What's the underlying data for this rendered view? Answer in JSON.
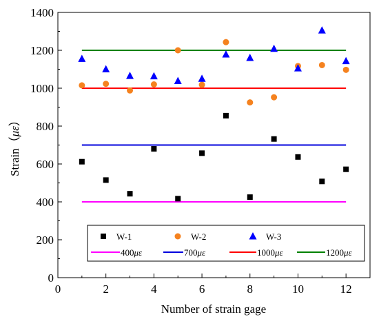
{
  "chart_data": {
    "type": "scatter",
    "xlabel": "Number of strain gage",
    "ylabel_prefix": "Strain（",
    "ylabel_unit": "με",
    "ylabel_suffix": "）",
    "xlim": [
      0,
      13
    ],
    "ylim": [
      0,
      1400
    ],
    "xticks": [
      0,
      2,
      4,
      6,
      8,
      10,
      12
    ],
    "yticks": [
      0,
      200,
      400,
      600,
      800,
      1000,
      1200,
      1400
    ],
    "x": [
      1,
      2,
      3,
      4,
      5,
      6,
      7,
      8,
      9,
      10,
      11,
      12
    ],
    "series": [
      {
        "name": "W-1",
        "marker": "square",
        "color": "#000000",
        "values": [
          612,
          515,
          443,
          680,
          417,
          657,
          855,
          425,
          732,
          637,
          508,
          572
        ]
      },
      {
        "name": "W-2",
        "marker": "circle",
        "color": "#f5821f",
        "values": [
          1015,
          1023,
          988,
          1020,
          1200,
          1018,
          1243,
          925,
          952,
          1117,
          1122,
          1097
        ]
      },
      {
        "name": "W-3",
        "marker": "triangle",
        "color": "#0000ff",
        "values": [
          1155,
          1100,
          1065,
          1063,
          1038,
          1050,
          1178,
          1160,
          1208,
          1105,
          1305,
          1143
        ]
      }
    ],
    "reference_lines": [
      {
        "prefix": "400",
        "unit": "με",
        "value": 400,
        "color": "#ff00ff"
      },
      {
        "prefix": "700",
        "unit": "με",
        "value": 700,
        "color": "#0000dd"
      },
      {
        "prefix": "1000",
        "unit": "με",
        "value": 1000,
        "color": "#ff0000"
      },
      {
        "prefix": "1200",
        "unit": "με",
        "value": 1200,
        "color": "#008000"
      }
    ],
    "legend_position": "bottom"
  }
}
